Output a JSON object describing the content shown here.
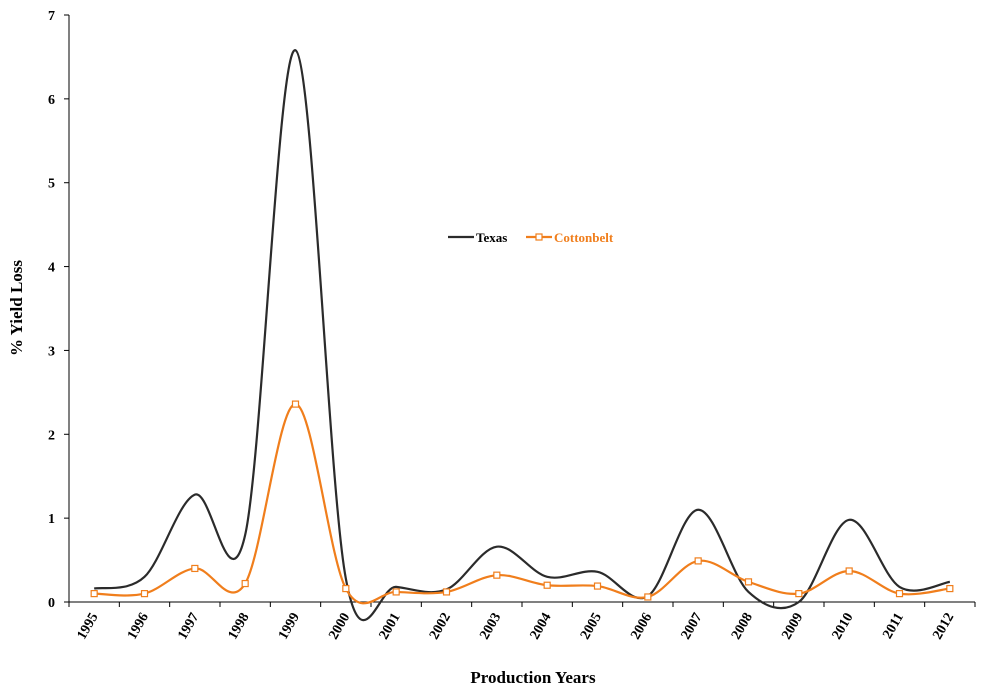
{
  "chart_data": {
    "type": "line",
    "title": "",
    "xlabel": "Production Years",
    "ylabel": "% Yield Loss",
    "categories": [
      "1995",
      "1996",
      "1997",
      "1998",
      "1999",
      "2000",
      "2001",
      "2002",
      "2003",
      "2004",
      "2005",
      "2006",
      "2007",
      "2008",
      "2009",
      "2010",
      "2011",
      "2012"
    ],
    "ylim": [
      0,
      7
    ],
    "yticks": [
      "0",
      "1",
      "2",
      "3",
      "4",
      "5",
      "6",
      "7"
    ],
    "grid": false,
    "smoothed": true,
    "legend_position": "center",
    "series": [
      {
        "name": "Texas",
        "color": "#2b2b2b",
        "marker": "none",
        "values": [
          0.16,
          0.3,
          1.28,
          0.8,
          6.58,
          0.28,
          0.18,
          0.15,
          0.66,
          0.3,
          0.36,
          0.07,
          1.1,
          0.12,
          0.0,
          0.98,
          0.18,
          0.24
        ]
      },
      {
        "name": "Cottonbelt",
        "color": "#f07e1c",
        "marker": "square",
        "values": [
          0.1,
          0.1,
          0.4,
          0.22,
          2.36,
          0.16,
          0.12,
          0.12,
          0.32,
          0.2,
          0.19,
          0.06,
          0.49,
          0.24,
          0.1,
          0.37,
          0.1,
          0.16
        ]
      }
    ]
  }
}
